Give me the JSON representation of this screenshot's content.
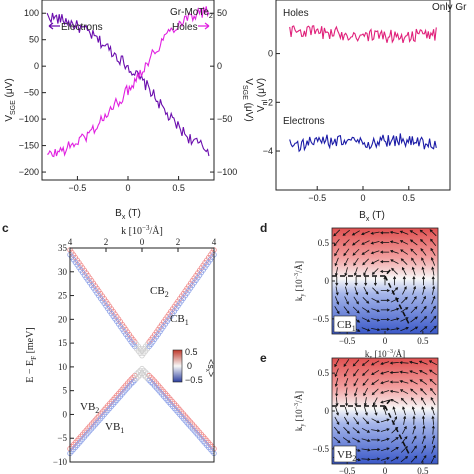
{
  "panel_a": {
    "material": "Gr-MoTe",
    "material_sub": "2",
    "left_label": "Electrons",
    "right_label": "Holes",
    "ylabel_left": "V",
    "ylabel_left_sub": "SGE",
    "ylabel_left_unit": " (μV)",
    "ylabel_right": "V",
    "ylabel_right_sub": "SGE",
    "ylabel_right_unit": " (μV)",
    "xlabel": "B",
    "xlabel_sub": "x",
    "xlabel_unit": " (T)"
  },
  "panel_b": {
    "title": "Only Gr",
    "ylabel": "V",
    "ylabel_sub": "nl",
    "ylabel_unit": " (μV)",
    "xlabel": "B",
    "xlabel_sub": "x",
    "xlabel_unit": " (T)"
  },
  "panel_c": {
    "letter": "c",
    "top_label": "k [10",
    "top_label_sup": "−3",
    "top_label_end": "/Å]",
    "ylabel": "E − E",
    "ylabel_sub": "F",
    "ylabel_unit": " [meV]",
    "bands": {
      "cb2": "CB",
      "cb2_sub": "2",
      "cb1": "CB",
      "cb1_sub": "1",
      "vb2": "VB",
      "vb2_sub": "2",
      "vb1": "VB",
      "vb1_sub": "1"
    },
    "colorbar_title": "<s",
    "colorbar_title_sub": "x",
    "colorbar_title_end": ">",
    "colorbar_ticks": [
      "0.5",
      "0",
      "−0.5"
    ]
  },
  "panel_d": {
    "letter": "d",
    "label": "CB",
    "label_sub": "1",
    "ylabel": "k",
    "ylabel_sub": "y",
    "ylabel_unit": " [10",
    "ylabel_sup": "−3",
    "ylabel_end": "/Å]",
    "xlabel": "k",
    "xlabel_sub": "x",
    "xlabel_unit": " [10",
    "xlabel_sup": "−3",
    "xlabel_end": "/Å]"
  },
  "panel_e": {
    "letter": "e",
    "label": "VB",
    "label_sub": "2",
    "ylabel": "k",
    "ylabel_sub": "y",
    "ylabel_unit": " [10",
    "ylabel_sup": "−3",
    "ylabel_end": "/Å]"
  },
  "chart_data": [
    {
      "type": "line",
      "panel": "a",
      "xlim": [
        -0.85,
        0.85
      ],
      "x_ticks": [
        -0.5,
        0.0,
        0.5
      ],
      "ylim": [
        -215,
        125
      ],
      "y_ticks": [
        -200,
        -150,
        -100,
        -50,
        0,
        50,
        100
      ],
      "y2lim": [
        -107.5,
        62.5
      ],
      "y2_ticks": [
        -100,
        -50,
        0,
        50,
        100
      ],
      "series": [
        {
          "name": "Electrons",
          "color": "#6a0dad",
          "x": [
            -0.8,
            -0.6,
            -0.4,
            -0.2,
            0.0,
            0.2,
            0.4,
            0.6,
            0.8
          ],
          "y": [
            95,
            85,
            65,
            35,
            0,
            -40,
            -95,
            -135,
            -160
          ]
        },
        {
          "name": "Holes",
          "color": "#e020e0",
          "x": [
            -0.8,
            -0.6,
            -0.4,
            -0.2,
            0.0,
            0.2,
            0.4,
            0.6,
            0.8
          ],
          "y": [
            -170,
            -155,
            -130,
            -90,
            -45,
            10,
            65,
            95,
            105
          ]
        }
      ]
    },
    {
      "type": "line",
      "panel": "b",
      "xlim": [
        -0.95,
        0.95
      ],
      "x_ticks": [
        -0.5,
        0.0,
        0.5
      ],
      "ylim": [
        -5.6,
        2.2
      ],
      "y_ticks": [
        -4,
        -2,
        0
      ],
      "series": [
        {
          "name": "Holes",
          "color": "#e0207a",
          "x": [
            -0.8,
            -0.4,
            0.0,
            0.4,
            0.8
          ],
          "y": [
            0.95,
            0.85,
            0.75,
            0.7,
            0.8
          ]
        },
        {
          "name": "Electrons",
          "color": "#1a1aa6",
          "x": [
            -0.8,
            -0.4,
            0.0,
            0.4,
            0.8
          ],
          "y": [
            -3.8,
            -3.6,
            -3.7,
            -3.5,
            -3.8
          ]
        }
      ]
    },
    {
      "type": "scatter",
      "panel": "c",
      "xlim": [
        -4,
        4
      ],
      "x_ticks": [
        4,
        2,
        0,
        2,
        4
      ],
      "ylim": [
        -10,
        35
      ],
      "y_ticks": [
        -10,
        -5,
        0,
        5,
        10,
        15,
        20,
        25,
        30,
        35
      ],
      "gap_min": 12,
      "bands": [
        {
          "name": "CB2",
          "color": "#f08a8a",
          "offset": 13.0,
          "slope": 5.4
        },
        {
          "name": "CB1",
          "color": "#8fa3e8",
          "offset": 12.0,
          "slope": 5.4
        },
        {
          "name": "VB2",
          "color": "#f08a8a",
          "offset": 10.0,
          "slope": -4.3
        },
        {
          "name": "VB1",
          "color": "#8fa3e8",
          "offset": 9.0,
          "slope": -4.3
        }
      ],
      "colorbar_range": [
        -0.5,
        0.5
      ]
    },
    {
      "type": "heatmap",
      "panel": "d",
      "xlim": [
        -0.7,
        0.7
      ],
      "ylim": [
        -0.7,
        0.7
      ],
      "x_ticks": [
        -0.5,
        0,
        0.5
      ],
      "y_ticks": [
        -0.5,
        0,
        0.5
      ]
    },
    {
      "type": "heatmap",
      "panel": "e",
      "xlim": [
        -0.7,
        0.7
      ],
      "ylim": [
        -0.7,
        0.7
      ],
      "x_ticks": [
        -0.5,
        0,
        0.5
      ],
      "y_ticks": [
        -0.5,
        0,
        0.5
      ]
    }
  ],
  "colors": {
    "axis": "#222222",
    "blue": "#3a58c8",
    "red": "#d84040",
    "white": "#f4f4f4"
  }
}
